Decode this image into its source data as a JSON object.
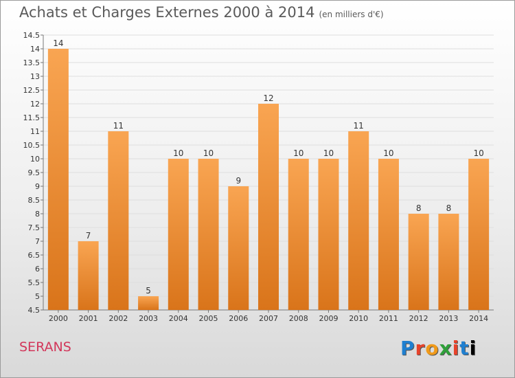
{
  "title": "Achats et Charges Externes 2000 à 2014",
  "unit_note": "(en milliers d'€)",
  "place": "SERANS",
  "brand": {
    "letters": [
      "P",
      "r",
      "o",
      "x",
      "i",
      "t",
      "i"
    ]
  },
  "chart_data": {
    "type": "bar",
    "title": "Achats et Charges Externes 2000 à 2014",
    "xlabel": "",
    "ylabel": "",
    "categories": [
      "2000",
      "2001",
      "2002",
      "2003",
      "2004",
      "2005",
      "2006",
      "2007",
      "2008",
      "2009",
      "2010",
      "2011",
      "2012",
      "2013",
      "2014"
    ],
    "values": [
      14,
      7,
      11,
      5,
      10,
      10,
      9,
      12,
      10,
      10,
      11,
      10,
      8,
      8,
      10
    ],
    "ylim": [
      4.5,
      14.5
    ],
    "yticks": [
      "4.5",
      "5",
      "5.5",
      "6",
      "6.5",
      "7",
      "7.5",
      "8",
      "8.5",
      "9",
      "9.5",
      "10",
      "10.5",
      "11",
      "11.5",
      "12",
      "12.5",
      "13",
      "13.5",
      "14",
      "14.5"
    ],
    "grid": true,
    "bar_color": "#f28c28"
  }
}
